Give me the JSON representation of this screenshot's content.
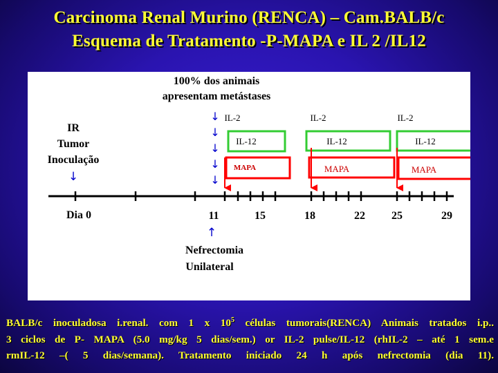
{
  "title_line1": "Carcinoma Renal Murino (RENCA) – Cam.BALB/c",
  "title_line2": "Esquema de Tratamento -P-MAPA e IL 2 /IL12",
  "diagram": {
    "metastasis_line1": "100% dos animais",
    "metastasis_line2": "apresentam metástases",
    "ir_line1": "IR",
    "ir_line2": "Tumor",
    "ir_line3": "Inoculação",
    "day_labels": [
      "Dia 0",
      "11",
      "15",
      "18",
      "22",
      "25",
      "29"
    ],
    "cycles": [
      {
        "il2": "IL-2",
        "il12": "IL-12",
        "mapa": "MAPA"
      },
      {
        "il2": "IL-2",
        "il12": "IL-12",
        "mapa": "MAPA"
      },
      {
        "il2": "IL-2",
        "il12": "IL-12",
        "mapa": "MAPA"
      }
    ],
    "nefrectomia_line1": "Nefrectomia",
    "nefrectomia_line2": "Unilateral",
    "arrow_down_glyph": "↓",
    "arrow_up_glyph": "↑",
    "colors": {
      "il12_box": "#33cc33",
      "mapa_box": "#ff0000",
      "mapa_text": "#cc0000",
      "blue_arrow": "#0000cc",
      "red_arrow": "#ff0000"
    }
  },
  "footer": {
    "line1_a": "BALB/c inoculadosa i.renal. com 1 x 10",
    "line1_sup": "5",
    "line1_b": " células tumorais(RENCA)  Animais tratados i.p..",
    "line2": "3 ciclos de P- MAPA (5.0 mg/kg 5 dias/sem.) or IL-2 pulse/IL-12 (rhIL-2 – até 1 sem.e",
    "line3": "rmIL-12 –( 5 dias/semana). Tratamento iniciado 24 h após nefrectomia (dia 11)."
  }
}
